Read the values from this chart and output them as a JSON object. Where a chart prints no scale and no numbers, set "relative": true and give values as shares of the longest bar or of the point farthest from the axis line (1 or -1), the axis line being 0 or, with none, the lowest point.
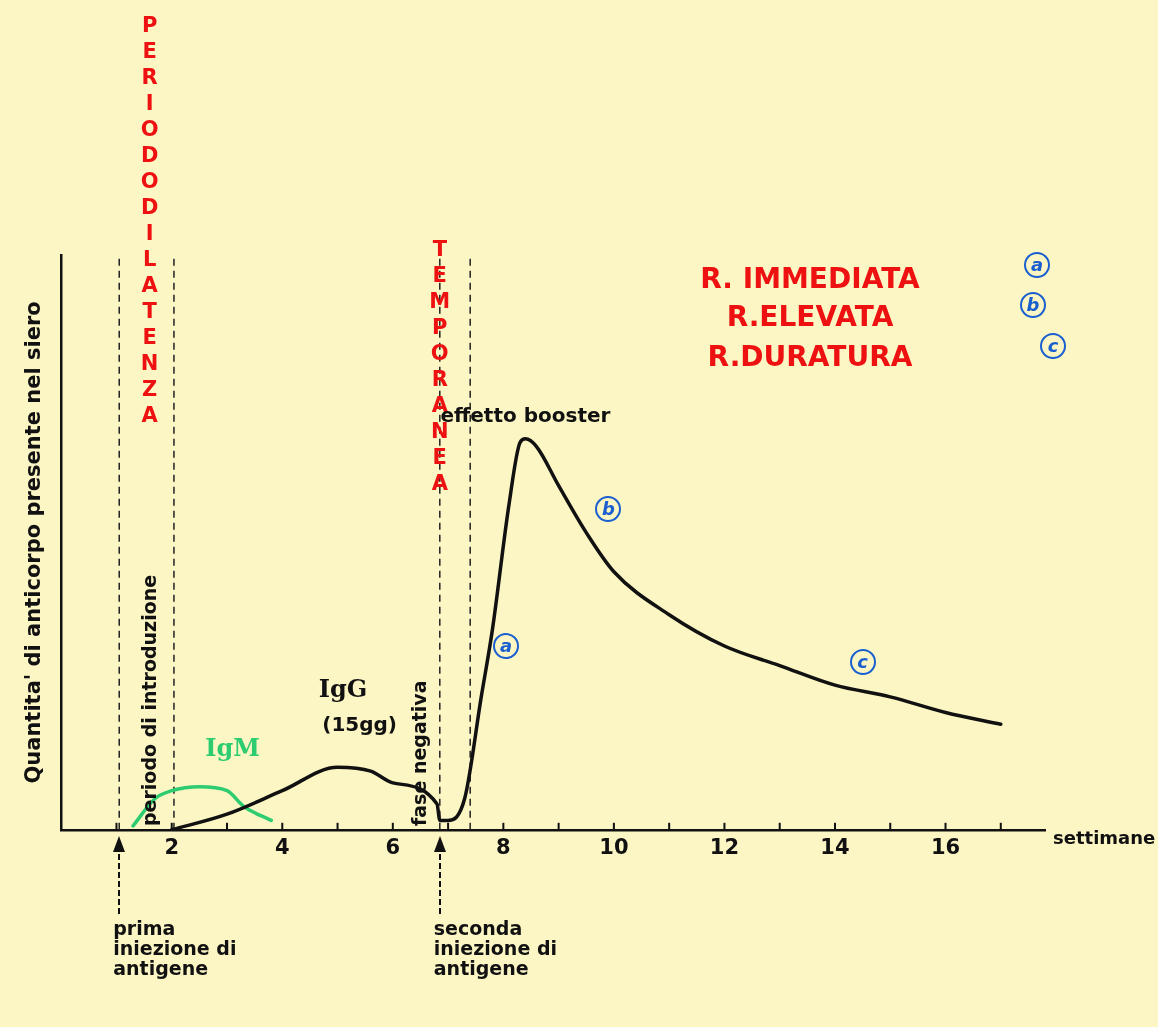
{
  "chart_data": {
    "type": "line",
    "relative": true,
    "xlabel": "settimane",
    "ylabel": "Quantita' di anticorpo presente nel siero",
    "xlim": [
      0,
      17.8
    ],
    "xticks": [
      {
        "value": 1,
        "label": null
      },
      2,
      {
        "value": 3,
        "label": null
      },
      4,
      {
        "value": 5,
        "label": null
      },
      6,
      {
        "value": 7,
        "label": null
      },
      8,
      {
        "value": 9,
        "label": null
      },
      10,
      {
        "value": 11,
        "label": null
      },
      12,
      {
        "value": 13,
        "label": null
      },
      14,
      {
        "value": 15,
        "label": null
      },
      16,
      {
        "value": 17,
        "label": null
      }
    ],
    "series": [
      {
        "name": "IgG",
        "color": "#111111",
        "x": [
          2,
          3,
          4,
          5,
          5.6,
          6,
          6.8,
          6.85,
          7,
          7.3,
          7.6,
          7.8,
          8.1,
          8.3,
          8.4,
          8.6,
          9,
          9.5,
          10,
          11,
          12,
          13,
          14,
          15,
          16,
          17
        ],
        "values": [
          0,
          0.04,
          0.1,
          0.16,
          0.15,
          0.12,
          0.066,
          0.024,
          0.024,
          0.08,
          0.34,
          0.51,
          0.83,
          0.99,
          1,
          0.98,
          0.88,
          0.76,
          0.66,
          0.55,
          0.47,
          0.42,
          0.37,
          0.34,
          0.3,
          0.27
        ]
      },
      {
        "name": "IgM",
        "color": "#2ecc71",
        "x": [
          1.3,
          1.7,
          2,
          2.5,
          3,
          3.3,
          3.8
        ],
        "values": [
          0.01,
          0.08,
          0.1,
          0.11,
          0.1,
          0.06,
          0.024
        ]
      }
    ],
    "ref_lines": [
      {
        "axis": "x",
        "value": 1.05,
        "line_style": "dashed"
      },
      {
        "axis": "x",
        "value": 2.04,
        "line_style": "dashed"
      },
      {
        "axis": "x",
        "value": 6.85,
        "line_style": "dashed"
      },
      {
        "axis": "x",
        "value": 7.4,
        "line_style": "dashed"
      }
    ],
    "annotations": [
      "R. IMMEDIATA",
      "R.ELEVATA",
      "R.DURATURA",
      "a",
      "b",
      "c",
      "PERIODO DI LATENZA",
      "TEMPORANEA",
      "(15gg)",
      "periodo di introduzione",
      "fase negativa",
      "prima iniezione di antigene",
      "seconda iniezione di antigene",
      {
        "text": "a",
        "x": 8.05,
        "y": 0.47
      },
      {
        "text": "b",
        "x": 9.9,
        "y": 0.82
      },
      {
        "text": "c",
        "x": 14.5,
        "y": 0.43
      },
      {
        "text": "effetto booster",
        "x": 8.4,
        "y": 1
      }
    ],
    "legend": false,
    "marker": "none",
    "line_style": "solid"
  }
}
